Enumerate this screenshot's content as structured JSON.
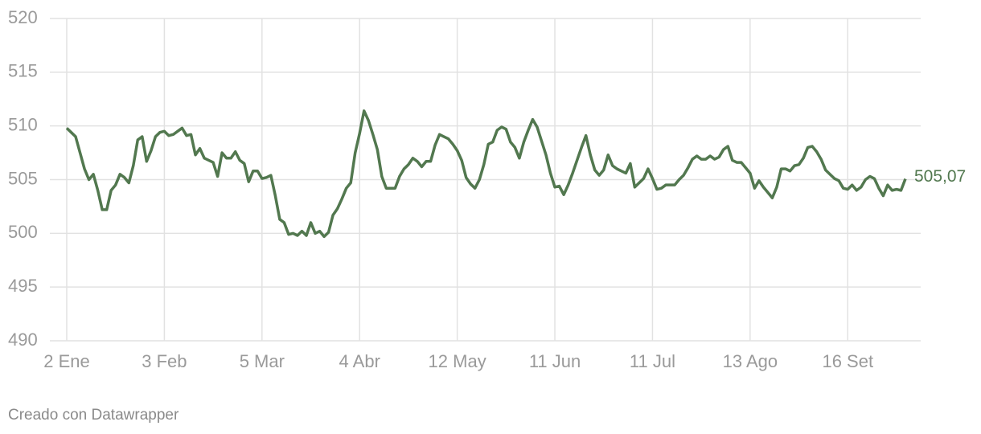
{
  "chart_data": {
    "type": "line",
    "categories": [
      "2 Ene",
      null,
      null,
      null,
      null,
      null,
      null,
      null,
      null,
      null,
      null,
      null,
      null,
      null,
      null,
      null,
      null,
      null,
      null,
      null,
      null,
      null,
      "3 Feb",
      null,
      null,
      null,
      null,
      null,
      null,
      null,
      null,
      null,
      null,
      null,
      null,
      null,
      null,
      null,
      null,
      null,
      null,
      null,
      null,
      null,
      "5 Mar",
      null,
      null,
      null,
      null,
      null,
      null,
      null,
      null,
      null,
      null,
      null,
      null,
      null,
      null,
      null,
      null,
      null,
      null,
      null,
      null,
      null,
      "4 Abr",
      null,
      null,
      null,
      null,
      null,
      null,
      null,
      null,
      null,
      null,
      null,
      null,
      null,
      null,
      null,
      null,
      null,
      null,
      null,
      null,
      null,
      "12 May",
      null,
      null,
      null,
      null,
      null,
      null,
      null,
      null,
      null,
      null,
      null,
      null,
      null,
      null,
      null,
      null,
      null,
      null,
      null,
      null,
      null,
      "11 Jun",
      null,
      null,
      null,
      null,
      null,
      null,
      null,
      null,
      null,
      null,
      null,
      null,
      null,
      null,
      null,
      null,
      null,
      null,
      null,
      null,
      null,
      "11 Jul",
      null,
      null,
      null,
      null,
      null,
      null,
      null,
      null,
      null,
      null,
      null,
      null,
      null,
      null,
      null,
      null,
      null,
      null,
      null,
      null,
      null,
      "13 Ago",
      null,
      null,
      null,
      null,
      null,
      null,
      null,
      null,
      null,
      null,
      null,
      null,
      null,
      null,
      null,
      null,
      null,
      null,
      null,
      null,
      null,
      "16 Set",
      null,
      null,
      null,
      null,
      null,
      null,
      null,
      null,
      null,
      null,
      null,
      null,
      null
    ],
    "values": [
      509.8,
      509.4,
      509,
      507.5,
      506,
      505,
      505.5,
      504,
      502.2,
      502.2,
      504,
      504.5,
      505.5,
      505.2,
      504.7,
      506.3,
      508.7,
      509,
      506.7,
      507.7,
      509,
      509.4,
      509.5,
      509.1,
      509.2,
      509.5,
      509.8,
      509.1,
      509.2,
      507.3,
      507.9,
      507,
      506.8,
      506.6,
      505.3,
      507.5,
      507,
      507,
      507.6,
      506.8,
      506.5,
      504.8,
      505.8,
      505.8,
      505.1,
      505.2,
      505.4,
      503.5,
      501.3,
      501,
      499.9,
      500,
      499.8,
      500.2,
      499.8,
      501,
      500,
      500.2,
      499.7,
      500.1,
      501.7,
      502.3,
      503.2,
      504.2,
      504.7,
      507.5,
      509.3,
      511.4,
      510.5,
      509.2,
      507.8,
      505.3,
      504.2,
      504.2,
      504.2,
      505.3,
      506,
      506.4,
      507,
      506.7,
      506.2,
      506.7,
      506.7,
      508.2,
      509.2,
      509,
      508.8,
      508.3,
      507.7,
      506.8,
      505.2,
      504.6,
      504.2,
      505,
      506.4,
      508.3,
      508.5,
      509.6,
      509.9,
      509.7,
      508.5,
      508,
      507,
      508.5,
      509.6,
      510.6,
      509.9,
      508.6,
      507.3,
      505.6,
      504.3,
      504.4,
      503.6,
      504.5,
      505.6,
      506.8,
      508,
      509.1,
      507.3,
      505.9,
      505.4,
      505.9,
      507.3,
      506.3,
      506,
      505.8,
      505.6,
      506.5,
      504.3,
      504.7,
      505.1,
      506,
      505.1,
      504.1,
      504.2,
      504.5,
      504.5,
      504.5,
      505,
      505.4,
      506.1,
      506.9,
      507.2,
      506.9,
      506.9,
      507.2,
      506.9,
      507.1,
      507.8,
      508.1,
      506.8,
      506.6,
      506.6,
      506.1,
      505.6,
      504.2,
      504.9,
      504.3,
      503.8,
      503.3,
      504.3,
      506,
      506,
      505.8,
      506.3,
      506.4,
      507,
      508,
      508.1,
      507.6,
      506.9,
      505.9,
      505.5,
      505.1,
      504.9,
      504.2,
      504.1,
      504.5,
      504,
      504.3,
      505,
      505.3,
      505.1,
      504.2,
      503.5,
      504.5,
      504,
      504.1,
      504,
      505.07
    ],
    "value_labels": [
      null,
      null,
      null,
      null,
      null,
      null,
      null,
      null,
      null,
      null,
      null,
      null,
      null,
      null,
      null,
      null,
      null,
      null,
      null,
      null,
      null,
      null,
      null,
      null,
      null,
      null,
      null,
      null,
      null,
      null,
      null,
      null,
      null,
      null,
      null,
      null,
      null,
      null,
      null,
      null,
      null,
      null,
      null,
      null,
      null,
      null,
      null,
      null,
      null,
      null,
      null,
      null,
      null,
      null,
      null,
      null,
      null,
      null,
      null,
      null,
      null,
      null,
      null,
      null,
      null,
      null,
      null,
      null,
      null,
      null,
      null,
      null,
      null,
      null,
      null,
      null,
      null,
      null,
      null,
      null,
      null,
      null,
      null,
      null,
      null,
      null,
      null,
      null,
      null,
      null,
      null,
      null,
      null,
      null,
      null,
      null,
      null,
      null,
      null,
      null,
      null,
      null,
      null,
      null,
      null,
      null,
      null,
      null,
      null,
      null,
      null,
      null,
      null,
      null,
      null,
      null,
      null,
      null,
      null,
      null,
      null,
      null,
      null,
      null,
      null,
      null,
      null,
      null,
      null,
      null,
      null,
      null,
      null,
      null,
      null,
      null,
      null,
      null,
      null,
      null,
      null,
      null,
      null,
      null,
      null,
      null,
      null,
      null,
      null,
      null,
      null,
      null,
      null,
      null,
      null,
      null,
      null,
      null,
      null,
      null,
      null,
      null,
      null,
      null,
      null,
      null,
      null,
      null,
      null,
      null,
      null,
      null,
      null,
      null,
      null,
      null,
      null,
      null,
      null,
      null,
      null,
      null,
      null,
      null,
      null,
      null,
      null,
      null,
      null,
      "505,07"
    ],
    "color": "#52784f",
    "ylim": [
      490,
      520
    ],
    "yticks": [
      490,
      495,
      500,
      505,
      510,
      515,
      520
    ],
    "grid": true,
    "footer": "Creado con Datawrapper"
  }
}
